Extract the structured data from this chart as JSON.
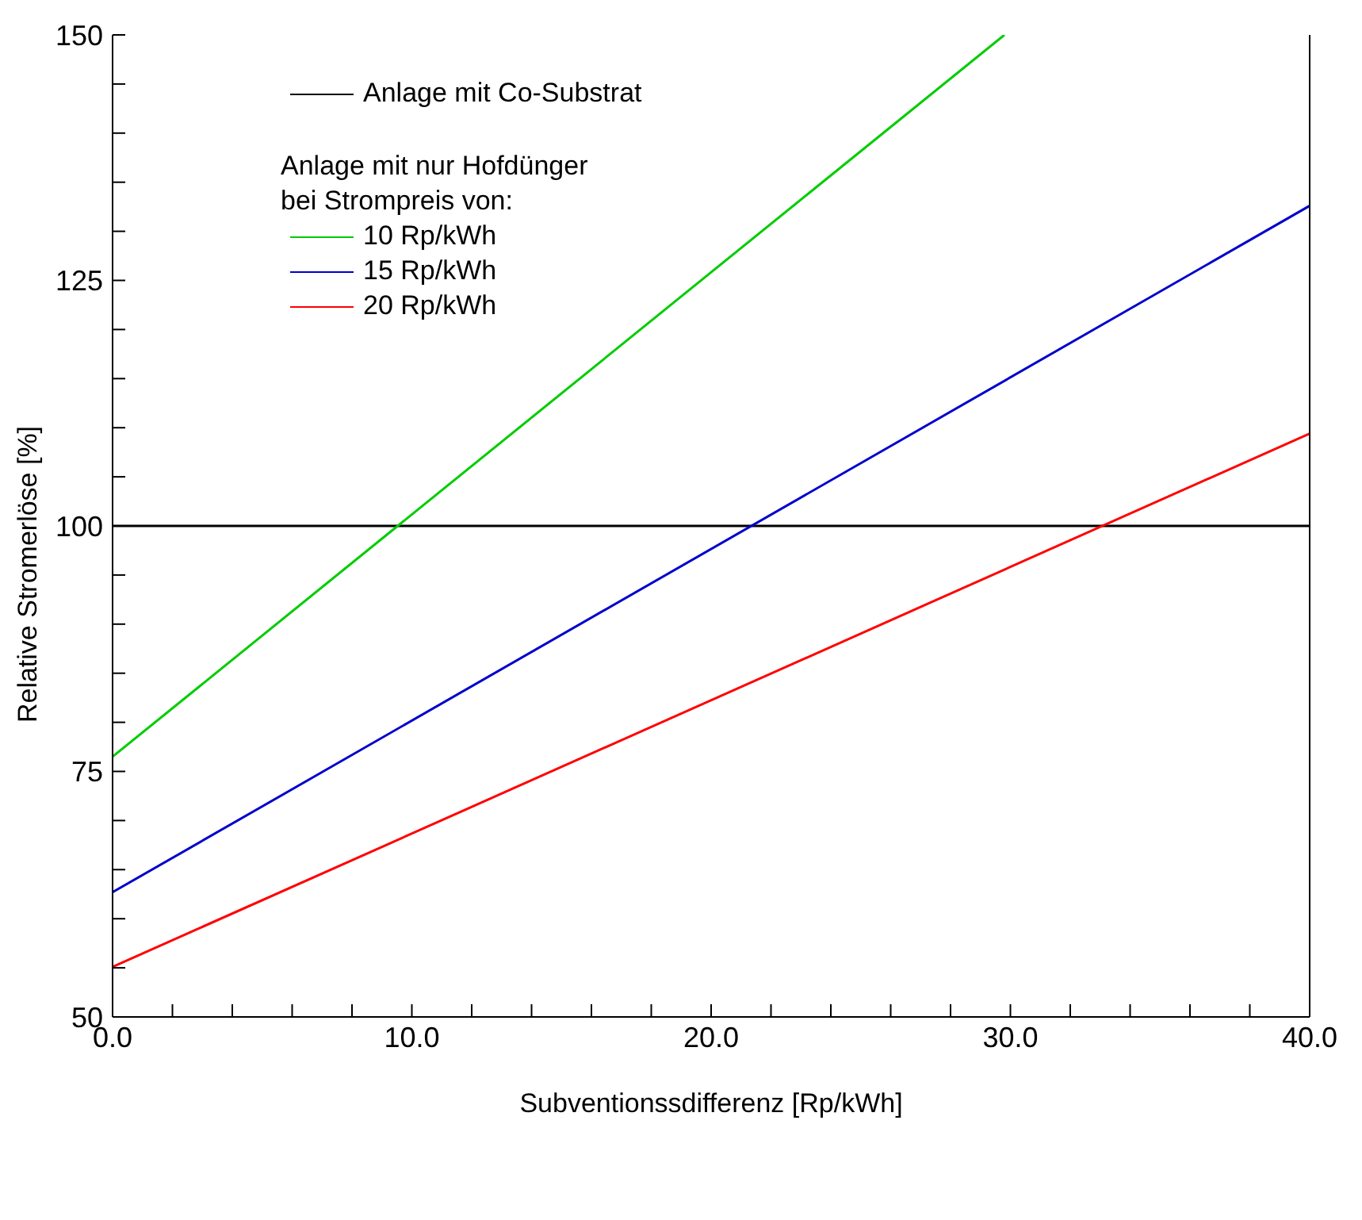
{
  "chart_data": {
    "type": "line",
    "xlabel": "Subventionssdifferenz [Rp/kWh]",
    "ylabel": "Relative Stromerlöse [%]",
    "legend_title": "Anlage mit nur Hofdünger\nbei Strompreis von:",
    "legend": "top left",
    "grid": false,
    "marker": "none",
    "line_style": "solid",
    "xlim": [
      0,
      40
    ],
    "ylim": [
      50,
      150
    ],
    "xticks": [
      {
        "value": 0,
        "label": "0.0"
      },
      {
        "value": 2,
        "label": null
      },
      {
        "value": 4,
        "label": null
      },
      {
        "value": 6,
        "label": null
      },
      {
        "value": 8,
        "label": null
      },
      {
        "value": 10,
        "label": "10.0"
      },
      {
        "value": 12,
        "label": null
      },
      {
        "value": 14,
        "label": null
      },
      {
        "value": 16,
        "label": null
      },
      {
        "value": 18,
        "label": null
      },
      {
        "value": 20,
        "label": "20.0"
      },
      {
        "value": 22,
        "label": null
      },
      {
        "value": 24,
        "label": null
      },
      {
        "value": 26,
        "label": null
      },
      {
        "value": 28,
        "label": null
      },
      {
        "value": 30,
        "label": "30.0"
      },
      {
        "value": 32,
        "label": null
      },
      {
        "value": 34,
        "label": null
      },
      {
        "value": 36,
        "label": null
      },
      {
        "value": 38,
        "label": null
      },
      {
        "value": 40,
        "label": "40.0"
      }
    ],
    "yticks": [
      50,
      {
        "value": 55,
        "label": null
      },
      {
        "value": 60,
        "label": null
      },
      {
        "value": 65,
        "label": null
      },
      {
        "value": 70,
        "label": null
      },
      75,
      {
        "value": 80,
        "label": null
      },
      {
        "value": 85,
        "label": null
      },
      {
        "value": 90,
        "label": null
      },
      {
        "value": 95,
        "label": null
      },
      100,
      {
        "value": 105,
        "label": null
      },
      {
        "value": 110,
        "label": null
      },
      {
        "value": 115,
        "label": null
      },
      {
        "value": 120,
        "label": null
      },
      125,
      {
        "value": 130,
        "label": null
      },
      {
        "value": 135,
        "label": null
      },
      {
        "value": 140,
        "label": null
      },
      {
        "value": 145,
        "label": null
      },
      150
    ],
    "series": [
      {
        "name": "Anlage mit Co-Substrat",
        "color": "#000000",
        "x": [
          0,
          40
        ],
        "values": [
          100,
          100
        ]
      },
      {
        "name": "10 Rp/kWh",
        "color": "#00cc00",
        "x": [
          0,
          29.8
        ],
        "values": [
          76.5,
          150
        ]
      },
      {
        "name": "15 Rp/kWh",
        "color": "#0000cc",
        "x": [
          0,
          40
        ],
        "values": [
          62.7,
          132.6
        ]
      },
      {
        "name": "20 Rp/kWh",
        "color": "#ff0000",
        "x": [
          0,
          40
        ],
        "values": [
          55.1,
          109.4
        ]
      }
    ]
  }
}
